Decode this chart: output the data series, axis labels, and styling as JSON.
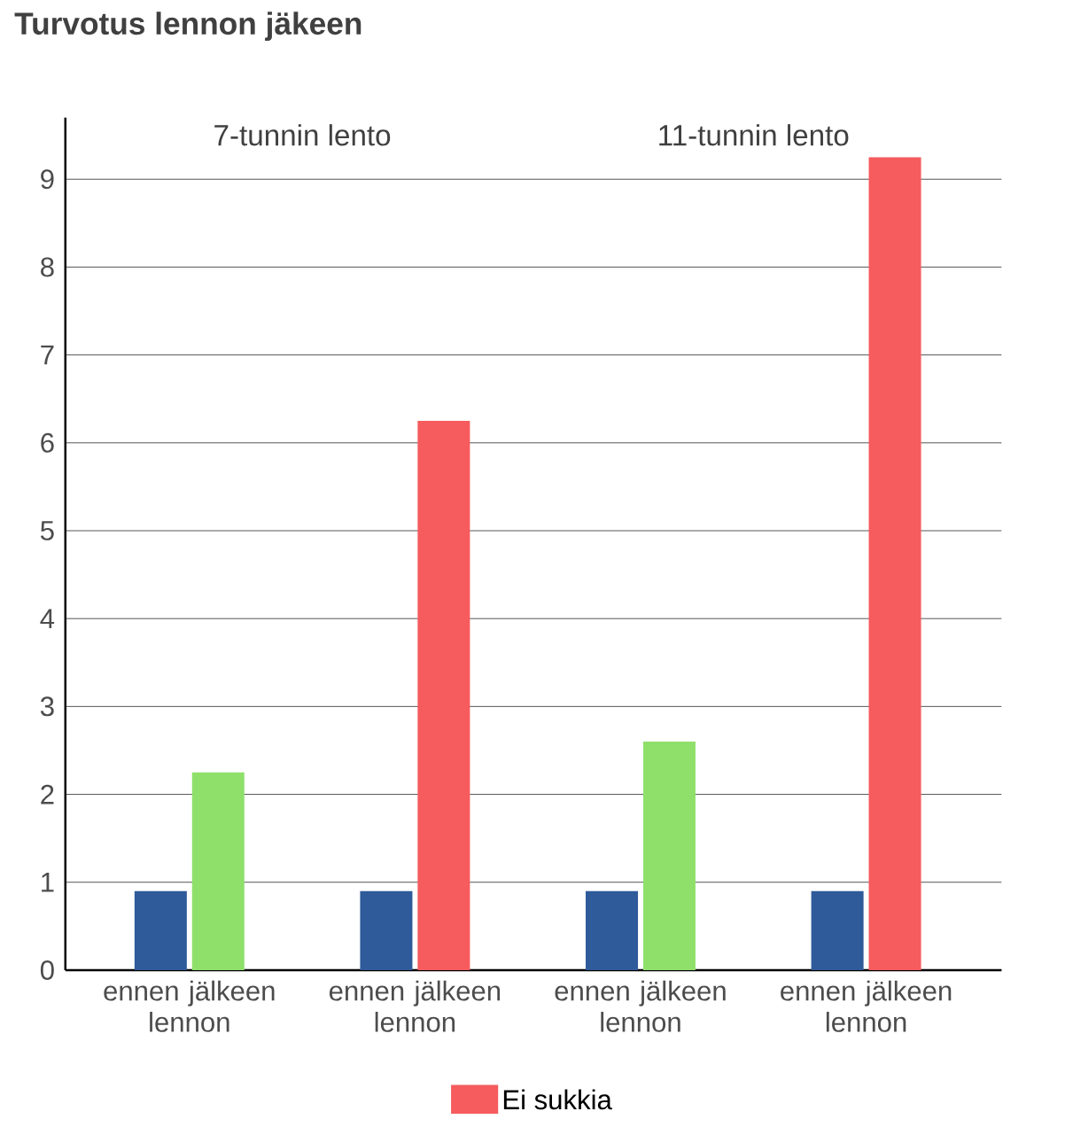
{
  "chart_data": {
    "type": "bar",
    "title": "Turvotus lennon jäkeen",
    "categories": [
      "ennen jälkeen lennon",
      "ennen jälkeen lennon",
      "ennen jälkeen lennon",
      "ennen jälkeen lennon"
    ],
    "series": [
      {
        "color": "#2f5b9b",
        "values": [
          0.9,
          0.9,
          0.9,
          0.9
        ]
      },
      {
        "color": "#8fe06b",
        "values": [
          2.25,
          null,
          2.6,
          null
        ]
      },
      {
        "name": "Ei sukkia",
        "color": "#f65b5d",
        "values": [
          null,
          6.25,
          null,
          9.25
        ]
      }
    ],
    "annotations": [
      "7-tunnin lento",
      "11-tunnin lento"
    ],
    "ylim": [
      0,
      9.7
    ],
    "yticks": [
      0,
      1,
      2,
      3,
      4,
      5,
      6,
      7,
      8,
      9
    ],
    "grid": "y",
    "legend": "bottom"
  }
}
